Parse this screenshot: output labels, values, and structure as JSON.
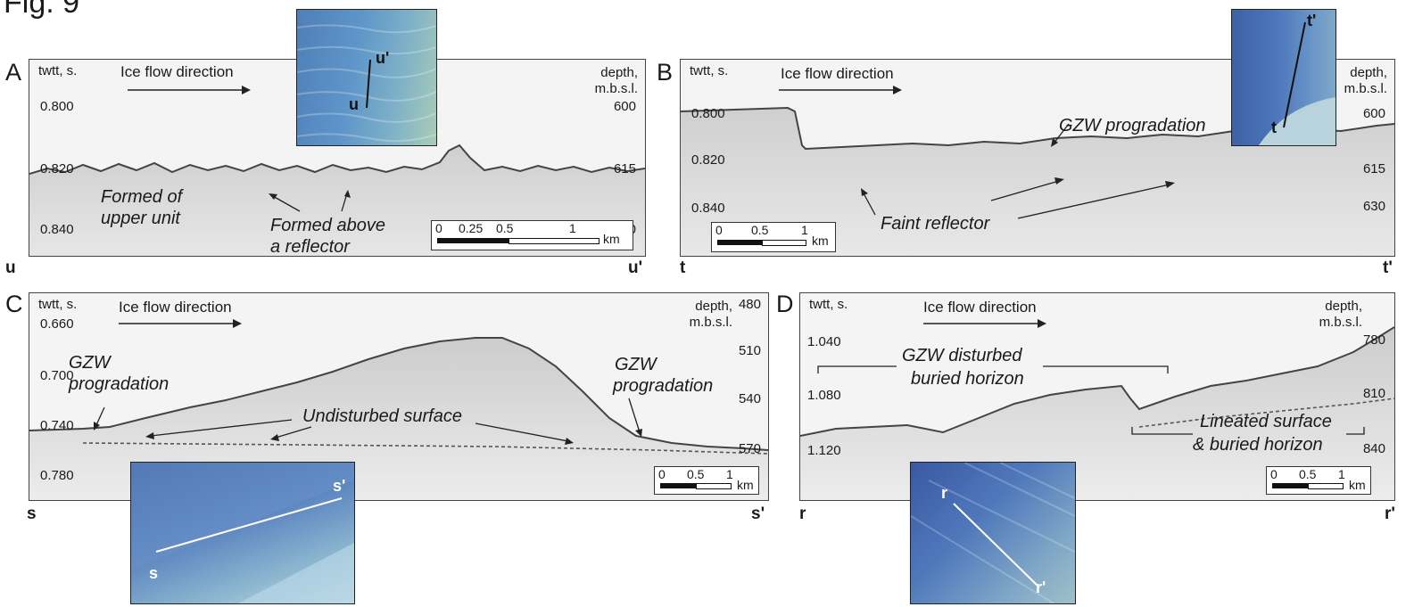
{
  "figure": {
    "title": "Fig. 9"
  },
  "panels": {
    "A": {
      "letter": "A",
      "left_axis_label": "twtt, s.",
      "right_axis_label_1": "depth,",
      "right_axis_label_2": "m.b.s.l.",
      "ice_flow": "Ice flow direction",
      "left_ticks": [
        "0.800",
        "0.820",
        "0.840"
      ],
      "right_ticks": [
        "600",
        "615",
        "630"
      ],
      "annotations": [
        "Formed of",
        "upper unit",
        "Formed above",
        "a reflector"
      ],
      "start": "u",
      "end": "u'",
      "inset_labels": [
        "u'",
        "u"
      ],
      "scale": {
        "labels": [
          "0",
          "0.25",
          "0.5",
          "1"
        ],
        "unit": "km"
      }
    },
    "B": {
      "letter": "B",
      "left_axis_label": "twtt, s.",
      "right_axis_label_1": "depth,",
      "right_axis_label_2": "m.b.s.l.",
      "ice_flow": "Ice flow direction",
      "left_ticks": [
        "0.800",
        "0.820",
        "0.840"
      ],
      "right_ticks": [
        "600",
        "615",
        "630"
      ],
      "annotations": [
        "GZW progradation",
        "Faint reflector"
      ],
      "start": "t",
      "end": "t'",
      "inset_labels": [
        "t'",
        "t"
      ],
      "scale": {
        "labels": [
          "0",
          "0.5",
          "1"
        ],
        "unit": "km"
      }
    },
    "C": {
      "letter": "C",
      "left_axis_label": "twtt, s.",
      "right_axis_label_1": "depth,",
      "right_axis_label_2": "m.b.s.l.",
      "ice_flow": "Ice flow direction",
      "left_ticks": [
        "0.660",
        "0.700",
        "0.740",
        "0.780"
      ],
      "right_ticks": [
        "480",
        "510",
        "540",
        "570"
      ],
      "annotations": [
        "GZW",
        "progradation",
        "Undisturbed surface",
        "GZW",
        "progradation"
      ],
      "start": "s",
      "end": "s'",
      "inset_labels": [
        "s'",
        "s"
      ],
      "scale": {
        "labels": [
          "0",
          "0.5",
          "1"
        ],
        "unit": "km"
      }
    },
    "D": {
      "letter": "D",
      "left_axis_label": "twtt, s.",
      "right_axis_label_1": "depth,",
      "right_axis_label_2": "m.b.s.l.",
      "ice_flow": "Ice flow direction",
      "left_ticks": [
        "1.040",
        "1.080",
        "1.120"
      ],
      "right_ticks": [
        "780",
        "810",
        "840"
      ],
      "annotations": [
        "GZW disturbed",
        "buried horizon",
        "Lineated surface",
        "& buried horizon"
      ],
      "start": "r",
      "end": "r'",
      "inset_labels": [
        "r",
        "r'"
      ],
      "scale": {
        "labels": [
          "0",
          "0.5",
          "1"
        ],
        "unit": "km"
      }
    }
  }
}
